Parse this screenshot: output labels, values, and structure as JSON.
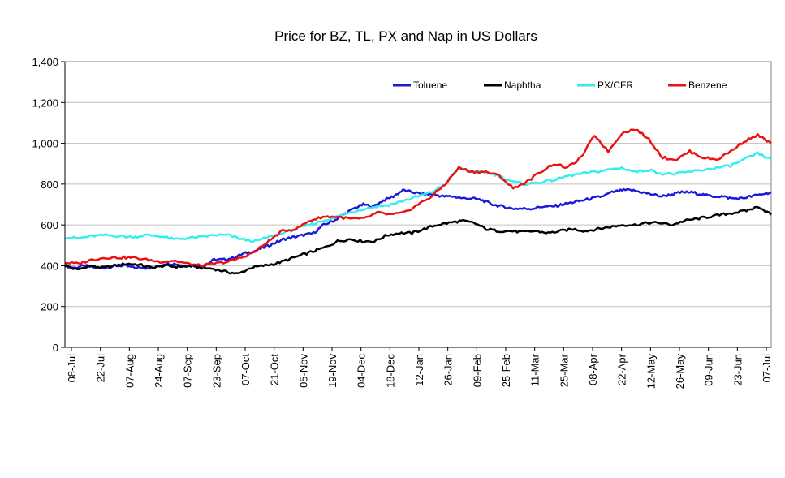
{
  "chart_data": {
    "type": "line",
    "title": "Price for BZ, TL, PX and Nap in US Dollars",
    "xlabel": "",
    "ylabel": "",
    "ylim": [
      0,
      1400
    ],
    "yticks": [
      0,
      200,
      400,
      600,
      800,
      1000,
      1200,
      1400
    ],
    "ytick_labels": [
      "0",
      "200",
      "400",
      "600",
      "800",
      "1,000",
      "1,200",
      "1,400"
    ],
    "x_tick_labels": [
      "08-Jul",
      "22-Jul",
      "07-Aug",
      "24-Aug",
      "07-Sep",
      "23-Sep",
      "07-Oct",
      "21-Oct",
      "05-Nov",
      "19-Nov",
      "04-Dec",
      "18-Dec",
      "12-Jan",
      "26-Jan",
      "09-Feb",
      "25-Feb",
      "11-Mar",
      "25-Mar",
      "08-Apr",
      "22-Apr",
      "12-May",
      "26-May",
      "09-Jun",
      "23-Jun",
      "07-Jul"
    ],
    "grid": true,
    "legend_position": "top-right",
    "series": [
      {
        "name": "Toluene",
        "color": "#1a1adb",
        "values": [
          400,
          390,
          400,
          390,
          390,
          400,
          400,
          390,
          390,
          390,
          410,
          410,
          400,
          400,
          400,
          430,
          430,
          440,
          460,
          470,
          490,
          510,
          530,
          540,
          550,
          560,
          600,
          620,
          650,
          680,
          700,
          690,
          720,
          740,
          770,
          760,
          750,
          750,
          740,
          740,
          730,
          730,
          720,
          700,
          690,
          680,
          680,
          680,
          690,
          690,
          700,
          710,
          720,
          730,
          740,
          760,
          770,
          770,
          760,
          750,
          740,
          750,
          760,
          760,
          750,
          740,
          740,
          730,
          730,
          740,
          750,
          760
        ]
      },
      {
        "name": "Naphtha",
        "color": "#000000",
        "values": [
          400,
          380,
          400,
          390,
          400,
          410,
          405,
          390,
          400,
          395,
          400,
          390,
          385,
          370,
          360,
          390,
          400,
          410,
          430,
          450,
          470,
          490,
          520,
          530,
          520,
          520,
          550,
          560,
          560,
          580,
          600,
          610,
          620,
          610,
          580,
          570,
          570,
          565,
          570,
          560,
          570,
          580,
          570,
          580,
          590,
          600,
          600,
          610,
          610,
          600,
          620,
          630,
          640,
          650,
          660,
          670,
          690,
          650
        ]
      },
      {
        "name": "PX/CFR",
        "color": "#33eeee",
        "values": [
          540,
          535,
          545,
          550,
          545,
          540,
          550,
          545,
          530,
          535,
          540,
          550,
          550,
          530,
          520,
          540,
          560,
          580,
          600,
          620,
          640,
          660,
          680,
          690,
          700,
          720,
          740,
          760,
          800,
          880,
          860,
          860,
          840,
          810,
          800,
          810,
          820,
          840,
          850,
          860,
          870,
          880,
          860,
          870,
          850,
          850,
          860,
          870,
          880,
          890,
          920,
          950,
          920
        ]
      },
      {
        "name": "Benzene",
        "color": "#ee1111",
        "values": [
          415,
          410,
          430,
          440,
          440,
          440,
          430,
          420,
          425,
          410,
          400,
          410,
          420,
          440,
          470,
          520,
          570,
          580,
          620,
          640,
          640,
          630,
          630,
          660,
          650,
          660,
          700,
          740,
          800,
          880,
          860,
          860,
          840,
          780,
          810,
          860,
          900,
          880,
          930,
          1040,
          960,
          1050,
          1070,
          1020,
          930,
          920,
          960,
          930,
          920,
          960,
          1010,
          1040,
          1000
        ]
      }
    ]
  }
}
